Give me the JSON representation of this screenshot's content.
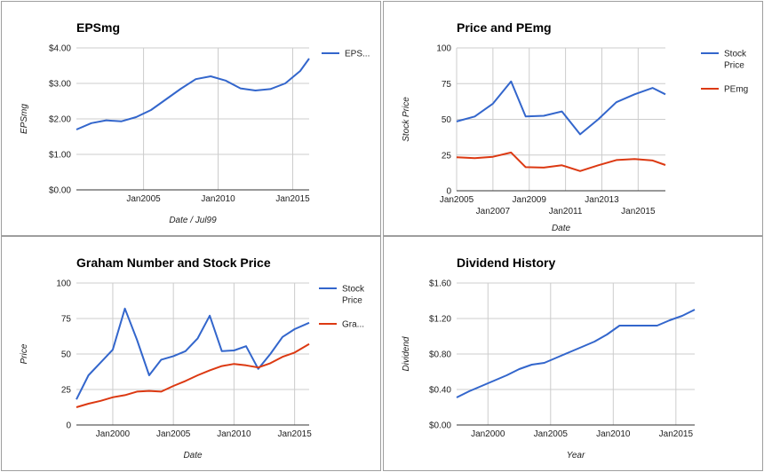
{
  "colors": {
    "blue": "#3366cc",
    "red": "#dc3912"
  },
  "chart_data": [
    {
      "id": "eps",
      "type": "line",
      "title": "EPSmg",
      "xlabel": "Date / Jul99",
      "ylabel": "EPSmg",
      "xlim": [
        2000.5,
        2016.1
      ],
      "ylim": [
        0,
        4
      ],
      "yticks": [
        0,
        1,
        2,
        3,
        4
      ],
      "ytick_labels": [
        "$0.00",
        "$1.00",
        "$2.00",
        "$3.00",
        "$4.00"
      ],
      "xticks": [
        {
          "value": 2005,
          "label": "Jan2005",
          "row": 0
        },
        {
          "value": 2010,
          "label": "Jan2010",
          "row": 0
        },
        {
          "value": 2015,
          "label": "Jan2015",
          "row": 0
        }
      ],
      "legend_position": "right",
      "series": [
        {
          "name": "EPS...",
          "color": "#3366cc",
          "x": [
            2000.5,
            2001.5,
            2002.5,
            2003.5,
            2004.5,
            2005.5,
            2006.5,
            2007.5,
            2008.5,
            2009.5,
            2010.5,
            2011.5,
            2012.5,
            2013.5,
            2014.5,
            2015.5,
            2016.1
          ],
          "y": [
            1.7,
            1.88,
            1.96,
            1.93,
            2.05,
            2.25,
            2.55,
            2.85,
            3.12,
            3.2,
            3.08,
            2.86,
            2.8,
            2.84,
            3.0,
            3.35,
            3.7
          ]
        }
      ]
    },
    {
      "id": "pe",
      "type": "line",
      "title": "Price and PEmg",
      "xlabel": "Date",
      "ylabel": "Stock Price",
      "xlim": [
        2005,
        2016.5
      ],
      "ylim": [
        0,
        100
      ],
      "yticks": [
        0,
        25,
        50,
        75,
        100
      ],
      "ytick_labels": [
        "0",
        "25",
        "50",
        "75",
        "100"
      ],
      "xticks": [
        {
          "value": 2005,
          "label": "Jan2005",
          "row": 0
        },
        {
          "value": 2007,
          "label": "Jan2007",
          "row": 1
        },
        {
          "value": 2009,
          "label": "Jan2009",
          "row": 0
        },
        {
          "value": 2011,
          "label": "Jan2011",
          "row": 1
        },
        {
          "value": 2013,
          "label": "Jan2013",
          "row": 0
        },
        {
          "value": 2015,
          "label": "Jan2015",
          "row": 1
        }
      ],
      "legend_position": "right",
      "series": [
        {
          "name": "Stock Price",
          "legend_lines": [
            "Stock",
            "Price"
          ],
          "color": "#3366cc",
          "x": [
            2005,
            2006,
            2007,
            2008,
            2008.8,
            2009.8,
            2010.8,
            2011.8,
            2012.8,
            2013.8,
            2014.8,
            2015.8,
            2016.5
          ],
          "y": [
            48.5,
            52,
            61,
            76.5,
            52,
            52.5,
            55.5,
            39.5,
            50,
            62,
            67.5,
            72,
            67.5
          ]
        },
        {
          "name": "PEmg",
          "legend_lines": [
            "PEmg"
          ],
          "color": "#dc3912",
          "x": [
            2005,
            2006,
            2007,
            2008,
            2008.8,
            2009.8,
            2010.8,
            2011.8,
            2012.8,
            2013.8,
            2014.8,
            2015.8,
            2016.5
          ],
          "y": [
            23.5,
            22.8,
            23.8,
            26.8,
            16.5,
            16.2,
            17.8,
            13.8,
            17.8,
            21.5,
            22.2,
            21.2,
            18
          ]
        }
      ]
    },
    {
      "id": "graham",
      "type": "line",
      "title": "Graham Number and Stock Price",
      "xlabel": "Date",
      "ylabel": "Price",
      "xlim": [
        1997,
        2016.2
      ],
      "ylim": [
        0,
        100
      ],
      "yticks": [
        0,
        25,
        50,
        75,
        100
      ],
      "ytick_labels": [
        "0",
        "25",
        "50",
        "75",
        "100"
      ],
      "xticks": [
        {
          "value": 2000,
          "label": "Jan2000",
          "row": 0
        },
        {
          "value": 2005,
          "label": "Jan2005",
          "row": 0
        },
        {
          "value": 2010,
          "label": "Jan2010",
          "row": 0
        },
        {
          "value": 2015,
          "label": "Jan2015",
          "row": 0
        }
      ],
      "legend_position": "right",
      "series": [
        {
          "name": "Stock Price",
          "legend_lines": [
            "Stock",
            "Price"
          ],
          "color": "#3366cc",
          "x": [
            1997,
            1998,
            1999,
            2000,
            2001,
            2002,
            2003,
            2004,
            2005,
            2006,
            2007,
            2008,
            2009,
            2010,
            2011,
            2012,
            2013,
            2014,
            2015,
            2016.2
          ],
          "y": [
            18,
            35,
            44,
            53,
            82,
            60,
            35,
            46,
            48.5,
            52,
            61,
            77,
            52,
            52.5,
            55.5,
            39.5,
            50,
            62,
            67.5,
            72
          ]
        },
        {
          "name": "Gra...",
          "legend_lines": [
            "Gra..."
          ],
          "color": "#dc3912",
          "x": [
            1997,
            1998,
            1999,
            2000,
            2001,
            2002,
            2003,
            2004,
            2005,
            2006,
            2007,
            2008,
            2009,
            2010,
            2011,
            2012,
            2013,
            2014,
            2015,
            2016.2
          ],
          "y": [
            12.5,
            15,
            17,
            19.5,
            21,
            23.5,
            24,
            23.5,
            27.5,
            31,
            35,
            38.5,
            41.5,
            43,
            42,
            40.5,
            43.5,
            48,
            51,
            57
          ]
        }
      ]
    },
    {
      "id": "dividend",
      "type": "line",
      "title": "Dividend History",
      "xlabel": "Year",
      "ylabel": "Dividend",
      "xlim": [
        1997.5,
        2016.5
      ],
      "ylim": [
        0,
        1.6
      ],
      "yticks": [
        0,
        0.4,
        0.8,
        1.2,
        1.6
      ],
      "ytick_labels": [
        "$0.00",
        "$0.40",
        "$0.80",
        "$1.20",
        "$1.60"
      ],
      "xticks": [
        {
          "value": 2000,
          "label": "Jan2000",
          "row": 0
        },
        {
          "value": 2005,
          "label": "Jan2005",
          "row": 0
        },
        {
          "value": 2010,
          "label": "Jan2010",
          "row": 0
        },
        {
          "value": 2015,
          "label": "Jan2015",
          "row": 0
        }
      ],
      "legend_position": "none",
      "series": [
        {
          "name": "",
          "color": "#3366cc",
          "x": [
            1997.5,
            1998.5,
            1999.5,
            2000.5,
            2001.5,
            2002.5,
            2003.5,
            2004.5,
            2005.5,
            2006.5,
            2007.5,
            2008.5,
            2009.5,
            2010.5,
            2011.5,
            2012.5,
            2013.5,
            2014.5,
            2015.5,
            2016.5
          ],
          "y": [
            0.31,
            0.38,
            0.44,
            0.5,
            0.56,
            0.63,
            0.68,
            0.7,
            0.76,
            0.82,
            0.88,
            0.94,
            1.02,
            1.12,
            1.12,
            1.12,
            1.12,
            1.18,
            1.23,
            1.3
          ]
        }
      ]
    }
  ]
}
